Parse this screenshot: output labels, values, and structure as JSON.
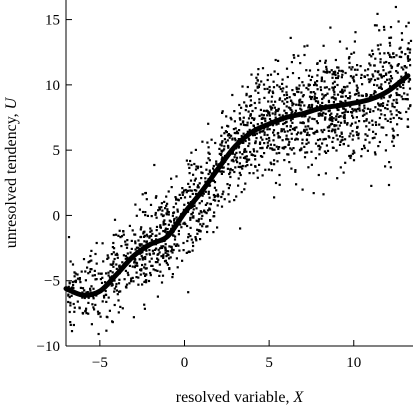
{
  "chart_data": {
    "type": "scatter",
    "title": "",
    "xlabel": "resolved variable, X",
    "ylabel": "unresolved tendency, U",
    "xlabel_parts": [
      "resolved variable, ",
      "X"
    ],
    "ylabel_parts": [
      "unresolved tendency, ",
      "U"
    ],
    "xlim": [
      -7,
      13.5
    ],
    "ylim": [
      -10,
      16.5
    ],
    "xticks": [
      -5,
      0,
      5,
      10
    ],
    "yticks": [
      -10,
      -5,
      0,
      5,
      10,
      15
    ],
    "xtick_labels": [
      "−5",
      "0",
      "5",
      "10"
    ],
    "ytick_labels": [
      "−10",
      "−5",
      "0",
      "5",
      "10",
      "15"
    ],
    "grid": false,
    "legend": "none",
    "point_color": "#000000",
    "curve_color": "#000000",
    "scatter_points": {
      "count": 1900,
      "x_range": [
        -6.9,
        13.4
      ],
      "noise_sd": [
        1.6,
        2.4
      ]
    },
    "fit_curve": {
      "x": [
        -7,
        -6,
        -5,
        -4,
        -3,
        -2,
        -1,
        0,
        1,
        2,
        3,
        4,
        5,
        6,
        7,
        8,
        9,
        10,
        11,
        12,
        13.2
      ],
      "y": [
        -5.6,
        -6.1,
        -5.8,
        -4.5,
        -3.1,
        -2.2,
        -1.6,
        0.2,
        1.8,
        3.6,
        5.3,
        6.4,
        7.0,
        7.5,
        7.8,
        8.2,
        8.4,
        8.6,
        8.9,
        9.5,
        10.7
      ]
    }
  }
}
